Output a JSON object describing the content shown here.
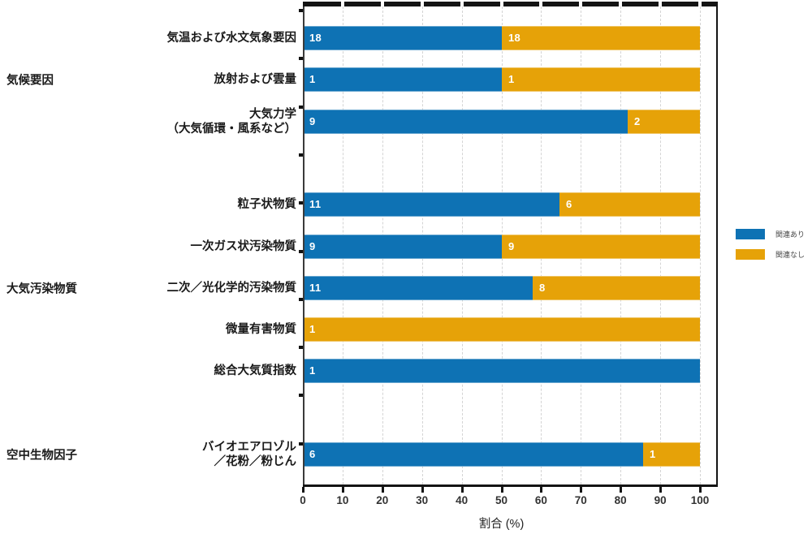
{
  "chart_data": {
    "type": "bar",
    "orientation": "horizontal",
    "stacked": true,
    "normalized": "percent",
    "title": "",
    "xlabel": "割合 (%)",
    "xlim": [
      0,
      100
    ],
    "x_ticks": [
      0,
      10,
      20,
      30,
      40,
      50,
      60,
      70,
      80,
      90,
      100
    ],
    "grid": "vertical-dashed-every-10",
    "legend_position": "right",
    "series_meta": {
      "related_name": "関連あり",
      "unrelated_name": "関連なし"
    },
    "legend": [
      {
        "name": "関連あり",
        "color": "#0e72b4"
      },
      {
        "name": "関連なし",
        "color": "#e6a208"
      }
    ],
    "groups": [
      {
        "label": "気候要因",
        "rows": [
          {
            "label": "気温および水文気象要因",
            "lines": [
              "気温および水文気象要因"
            ],
            "related": 18,
            "not_related": 18
          },
          {
            "label": "放射および雲量",
            "lines": [
              "放射および雲量"
            ],
            "related": 1,
            "not_related": 1
          },
          {
            "label": "大気力学（大気循環・風系など）",
            "lines": [
              "大気力学",
              "（大気循環・風系など）"
            ],
            "related": 9,
            "not_related": 2
          }
        ]
      },
      {
        "label": "大気汚染物質",
        "rows": [
          {
            "label": "粒子状物質",
            "lines": [
              "粒子状物質"
            ],
            "related": 11,
            "not_related": 6
          },
          {
            "label": "一次ガス状汚染物質",
            "lines": [
              "一次ガス状汚染物質"
            ],
            "related": 9,
            "not_related": 9
          },
          {
            "label": "二次／光化学的汚染物質",
            "lines": [
              "二次／光化学的汚染物質"
            ],
            "related": 11,
            "not_related": 8
          },
          {
            "label": "微量有害物質",
            "lines": [
              "微量有害物質"
            ],
            "related": 0,
            "not_related": 1
          },
          {
            "label": "総合大気質指数",
            "lines": [
              "総合大気質指数"
            ],
            "related": 1,
            "not_related": 0
          }
        ]
      },
      {
        "label": "空中生物因子",
        "rows": [
          {
            "label": "バイオエアロゾル／花粉／粉じん",
            "lines": [
              "バイオエアロゾル",
              "／花粉／粉じん"
            ],
            "related": 6,
            "not_related": 1
          }
        ]
      }
    ]
  },
  "colors": {
    "related": "#0e72b4",
    "not_related": "#e6a208",
    "gridline": "#d4d4d4",
    "spine": "#141414",
    "tick_label": "#333333",
    "value_label": "#ffffff"
  }
}
